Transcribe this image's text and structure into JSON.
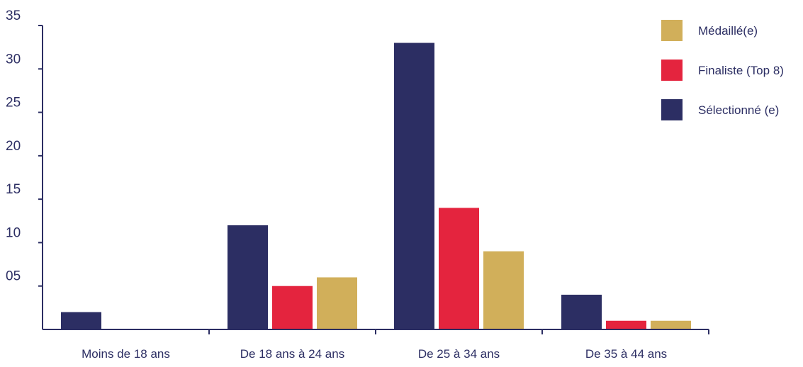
{
  "chart_data": {
    "type": "bar",
    "title": "",
    "xlabel": "",
    "ylabel": "",
    "categories": [
      "Moins de 18 ans",
      "De 18 ans à 24 ans",
      "De 25 à 34 ans",
      "De 35 à 44 ans"
    ],
    "series": [
      {
        "name": "Sélectionné (e)",
        "color": "#2c2e63",
        "values": [
          2,
          12,
          33,
          4
        ]
      },
      {
        "name": "Finaliste (Top 8)",
        "color": "#e4243e",
        "values": [
          0,
          5,
          14,
          1
        ]
      },
      {
        "name": "Médaillé(e)",
        "color": "#d1af5a",
        "values": [
          0,
          6,
          9,
          1
        ]
      }
    ],
    "ylim": [
      0,
      35
    ],
    "yticks": [
      {
        "value": 5,
        "label": "05"
      },
      {
        "value": 10,
        "label": "10"
      },
      {
        "value": 15,
        "label": "15"
      },
      {
        "value": 20,
        "label": "20"
      },
      {
        "value": 25,
        "label": "25"
      },
      {
        "value": 30,
        "label": "30"
      },
      {
        "value": 35,
        "label": "35"
      }
    ],
    "legend_order": [
      "Médaillé(e)",
      "Finaliste (Top 8)",
      "Sélectionné (e)"
    ],
    "legend_position": "top-right",
    "grid": false,
    "axis_color": "#2c2e63"
  }
}
